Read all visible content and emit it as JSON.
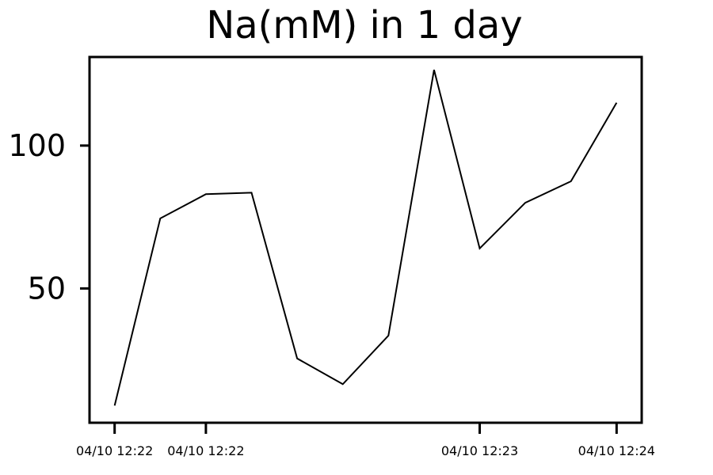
{
  "chart_data": {
    "type": "line",
    "title": "Na(mM) in 1 day",
    "xlabel": "",
    "ylabel": "",
    "x": [
      0,
      1,
      2,
      3,
      4,
      5,
      6,
      7,
      8,
      9,
      10,
      11
    ],
    "series": [
      {
        "name": "Na(mM)",
        "color": "#000000",
        "values": [
          9,
          74.5,
          83,
          83.5,
          25.5,
          16.5,
          33.5,
          126.5,
          64,
          80,
          87.5,
          115
        ]
      }
    ],
    "xlim": [
      -0.55,
      11.55
    ],
    "ylim": [
      3,
      131
    ],
    "xticks": [
      {
        "x": 0,
        "label": "04/10 12:22"
      },
      {
        "x": 2,
        "label": "04/10 12:22"
      },
      {
        "x": 8,
        "label": "04/10 12:23"
      },
      {
        "x": 11,
        "label": "04/10 12:24"
      }
    ],
    "yticks": [
      {
        "value": 50,
        "label": "50"
      },
      {
        "value": 100,
        "label": "100"
      }
    ],
    "grid": false,
    "legend": "none"
  }
}
